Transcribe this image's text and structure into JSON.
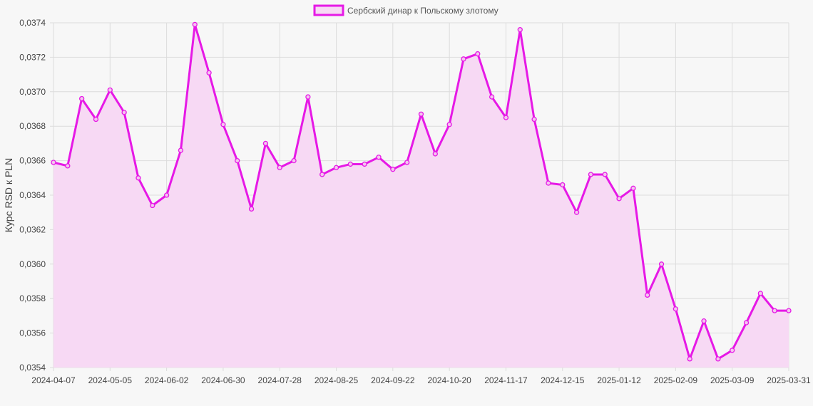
{
  "chart_data": {
    "type": "line",
    "ylabel": "Курс RSD к PLN",
    "xlabel": "",
    "ylim": [
      0.0354,
      0.0374
    ],
    "y_ticks": [
      "0,0354",
      "0,0356",
      "0,0358",
      "0,0360",
      "0,0362",
      "0,0364",
      "0,0366",
      "0,0368",
      "0,0370",
      "0,0372",
      "0,0374"
    ],
    "x_tick_labels": [
      "2024-04-07",
      "2024-05-05",
      "2024-06-02",
      "2024-06-30",
      "2024-07-28",
      "2024-08-25",
      "2024-09-22",
      "2024-10-20",
      "2024-11-17",
      "2024-12-15",
      "2025-01-12",
      "2025-02-09",
      "2025-03-09",
      "2025-03-31"
    ],
    "grid": true,
    "legend": "top-center",
    "colors": {
      "line": "#e619e6",
      "fill": "#f7d9f4"
    },
    "series": [
      {
        "name": "Сербский динар к Польскому злотому",
        "values": [
          0.03659,
          0.03657,
          0.03696,
          0.03684,
          0.03701,
          0.03688,
          0.0365,
          0.03634,
          0.0364,
          0.03666,
          0.03739,
          0.03711,
          0.03681,
          0.0366,
          0.03632,
          0.0367,
          0.03656,
          0.0366,
          0.03697,
          0.03652,
          0.03656,
          0.03658,
          0.03658,
          0.03662,
          0.03655,
          0.03659,
          0.03687,
          0.03664,
          0.03681,
          0.03719,
          0.03722,
          0.03697,
          0.03685,
          0.03736,
          0.03684,
          0.03647,
          0.03646,
          0.0363,
          0.03652,
          0.03652,
          0.03638,
          0.03644,
          0.03582,
          0.036,
          0.03574,
          0.03545,
          0.03567,
          0.03545,
          0.0355,
          0.03566,
          0.03583,
          0.03573,
          0.03573
        ]
      }
    ]
  }
}
